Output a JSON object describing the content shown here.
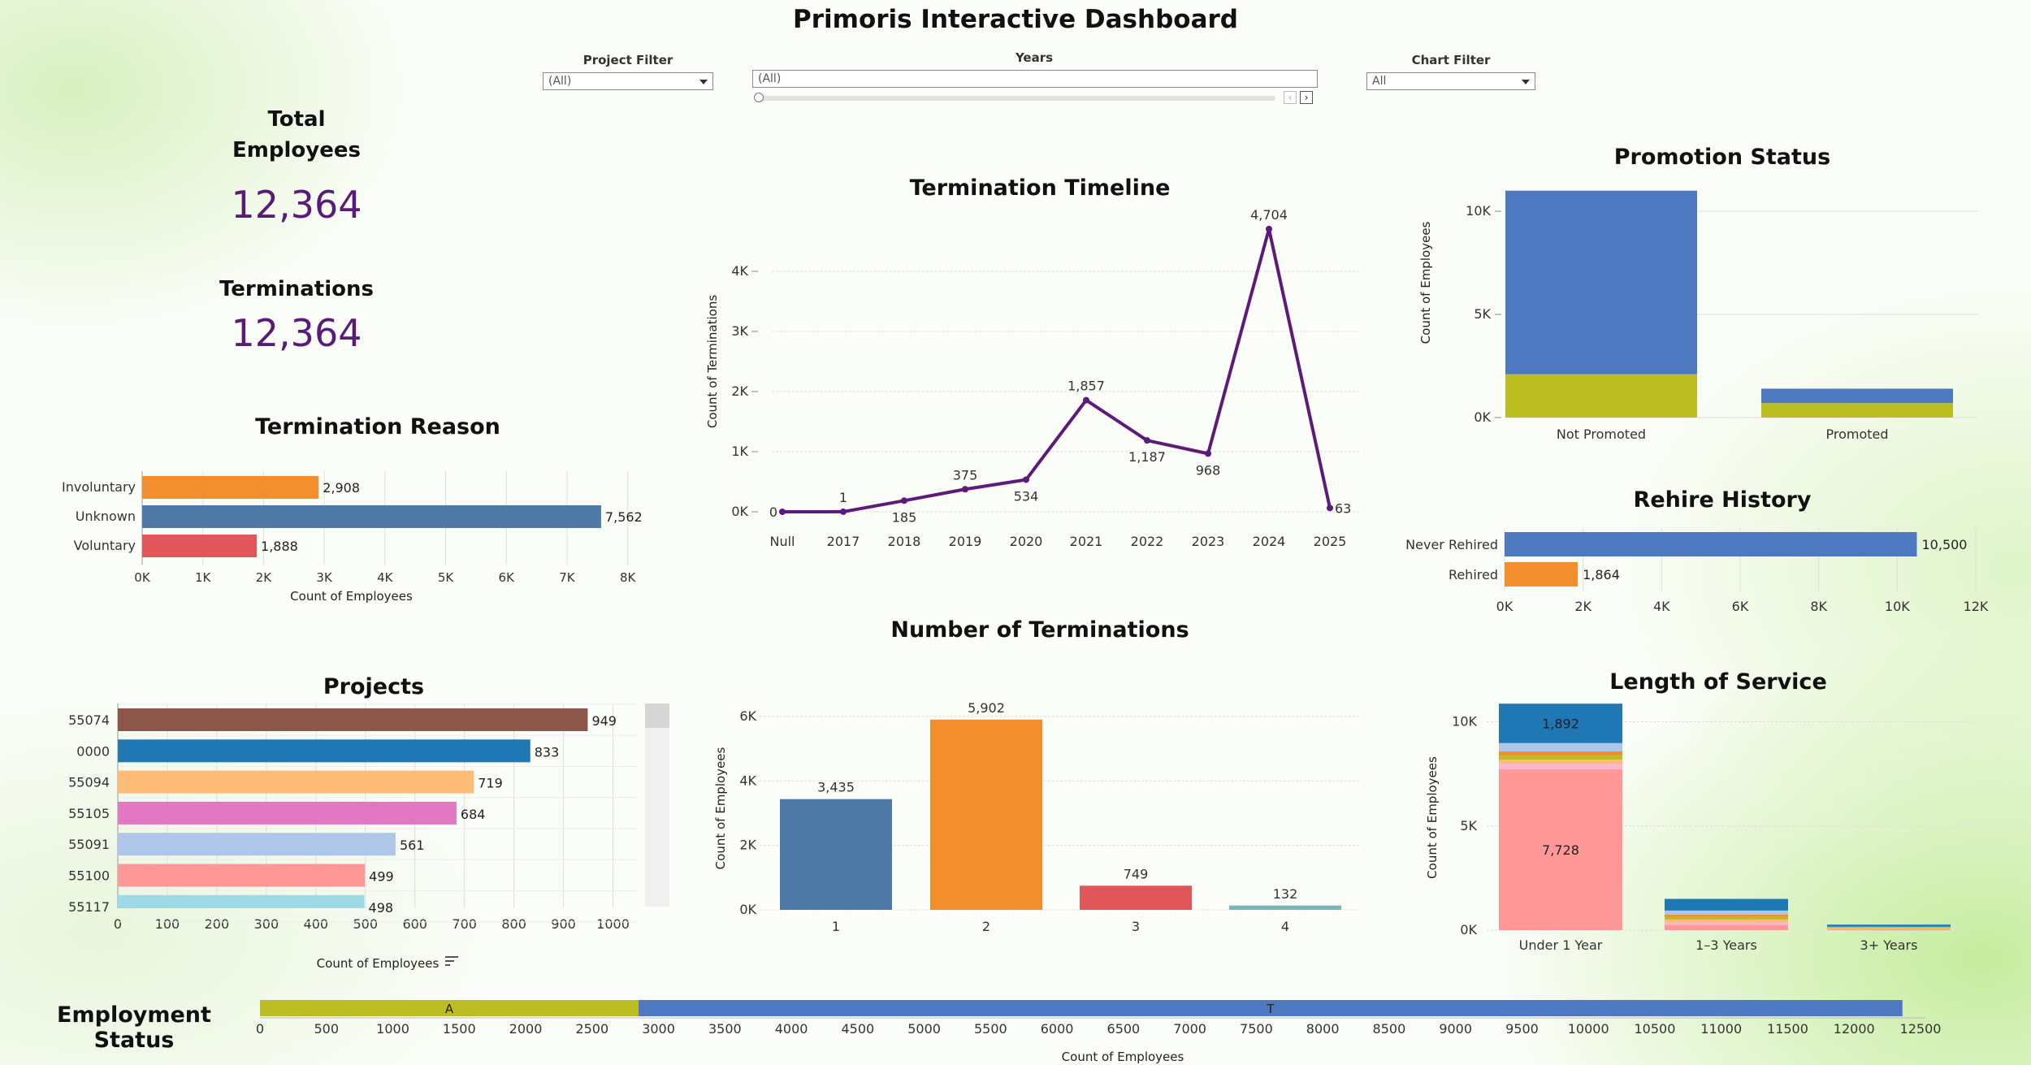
{
  "dashboard_title": "Primoris Interactive Dashboard",
  "filters": {
    "project": {
      "label": "Project Filter",
      "value": "(All)"
    },
    "years": {
      "label": "Years",
      "value": "(All)"
    },
    "chart": {
      "label": "Chart Filter",
      "value": "All"
    }
  },
  "kpis": {
    "total_employees": {
      "label": "Total Employees",
      "value": "12,364"
    },
    "terminations": {
      "label": "Terminations",
      "value": "12,364"
    }
  },
  "chart_data": [
    {
      "id": "termination_reason",
      "type": "bar",
      "orientation": "horizontal",
      "title": "Termination Reason",
      "xlabel": "Count of Employees",
      "categories": [
        "Involuntary",
        "Unknown",
        "Voluntary"
      ],
      "values": [
        2908,
        7562,
        1888
      ],
      "value_labels": [
        "2,908",
        "7,562",
        "1,888"
      ],
      "colors": [
        "#f28e2b",
        "#4e79a7",
        "#e15759"
      ],
      "xticks": [
        0,
        1000,
        2000,
        3000,
        4000,
        5000,
        6000,
        7000,
        8000
      ],
      "xtick_labels": [
        "0K",
        "1K",
        "2K",
        "3K",
        "4K",
        "5K",
        "6K",
        "7K",
        "8K"
      ],
      "xlim": [
        0,
        8500
      ]
    },
    {
      "id": "termination_timeline",
      "type": "line",
      "title": "Termination Timeline",
      "ylabel": "Count of Terminations",
      "categories": [
        "Null",
        "2017",
        "2018",
        "2019",
        "2020",
        "2021",
        "2022",
        "2023",
        "2024",
        "2025"
      ],
      "values": [
        0,
        1,
        185,
        375,
        534,
        1857,
        1187,
        968,
        4704,
        63
      ],
      "value_labels": [
        "0",
        "1",
        "185",
        "375",
        "534",
        "1,857",
        "1,187",
        "968",
        "4,704",
        "63"
      ],
      "label_side": [
        "left",
        "above",
        "below",
        "above",
        "below",
        "above",
        "below",
        "below",
        "above",
        "right"
      ],
      "color": "#5e1a7a",
      "yticks": [
        0,
        1000,
        2000,
        3000,
        4000
      ],
      "ytick_labels": [
        "0K",
        "1K",
        "2K",
        "3K",
        "4K"
      ],
      "ylim": [
        0,
        5000
      ]
    },
    {
      "id": "promotion_status",
      "type": "bar",
      "stacked": true,
      "title": "Promotion Status",
      "ylabel": "Count of Employees",
      "categories": [
        "Not Promoted",
        "Promoted"
      ],
      "series": [
        {
          "values": [
            2100,
            700
          ],
          "color": "#bcbd22"
        },
        {
          "values": [
            8900,
            700
          ],
          "color": "#4e79c0"
        }
      ],
      "yticks": [
        0,
        5000,
        10000
      ],
      "ytick_labels": [
        "0K",
        "5K",
        "10K"
      ],
      "ylim": [
        0,
        11500
      ]
    },
    {
      "id": "rehire_history",
      "type": "bar",
      "orientation": "horizontal",
      "title": "Rehire History",
      "categories": [
        "Never Rehired",
        "Rehired"
      ],
      "values": [
        10500,
        1864
      ],
      "value_labels": [
        "10,500",
        "1,864"
      ],
      "colors": [
        "#4e79c0",
        "#f28e2b"
      ],
      "xticks": [
        0,
        2000,
        4000,
        6000,
        8000,
        10000,
        12000
      ],
      "xtick_labels": [
        "0K",
        "2K",
        "4K",
        "6K",
        "8K",
        "10K",
        "12K"
      ],
      "xlim": [
        0,
        12000
      ]
    },
    {
      "id": "projects",
      "type": "bar",
      "orientation": "horizontal",
      "title": "Projects",
      "xlabel": "Count of Employees",
      "categories": [
        "55074",
        "0000",
        "55094",
        "55105",
        "55091",
        "55100",
        "55117"
      ],
      "values": [
        949,
        833,
        719,
        684,
        561,
        499,
        498
      ],
      "value_labels": [
        "949",
        "833",
        "719",
        "684",
        "561",
        "499",
        "498"
      ],
      "colors": [
        "#8c564b",
        "#1f77b4",
        "#ffbb78",
        "#e377c2",
        "#aec7e8",
        "#ff9896",
        "#9edae5"
      ],
      "xticks": [
        0,
        100,
        200,
        300,
        400,
        500,
        600,
        700,
        800,
        900,
        1000
      ],
      "xtick_labels": [
        "0",
        "100",
        "200",
        "300",
        "400",
        "500",
        "600",
        "700",
        "800",
        "900",
        "1000"
      ],
      "xlim": [
        0,
        1050
      ]
    },
    {
      "id": "number_of_terminations",
      "type": "bar",
      "title": "Number of Terminations",
      "ylabel": "Count of Employees",
      "categories": [
        "1",
        "2",
        "3",
        "4"
      ],
      "values": [
        3435,
        5902,
        749,
        132
      ],
      "value_labels": [
        "3,435",
        "5,902",
        "749",
        "132"
      ],
      "colors": [
        "#4e79a7",
        "#f28e2b",
        "#e15759",
        "#76b7b2"
      ],
      "yticks": [
        0,
        2000,
        4000,
        6000
      ],
      "ytick_labels": [
        "0K",
        "2K",
        "4K",
        "6K"
      ],
      "ylim": [
        0,
        6300
      ]
    },
    {
      "id": "length_of_service",
      "type": "bar",
      "stacked": true,
      "title": "Length of Service",
      "ylabel": "Count of Employees",
      "categories": [
        "Under 1 Year",
        "1–3 Years",
        "3+ Years"
      ],
      "series": [
        {
          "values": [
            7728,
            250,
            40
          ],
          "color": "#ff9896",
          "labels": [
            "7,728",
            "",
            ""
          ]
        },
        {
          "values": [
            250,
            130,
            25
          ],
          "color": "#f7b6d2",
          "labels": [
            "",
            "",
            ""
          ]
        },
        {
          "values": [
            200,
            130,
            25
          ],
          "color": "#ffbb78",
          "labels": [
            "",
            "",
            ""
          ]
        },
        {
          "values": [
            200,
            130,
            25
          ],
          "color": "#bcbd22",
          "labels": [
            "",
            "",
            ""
          ]
        },
        {
          "values": [
            200,
            100,
            25
          ],
          "color": "#f28e2b",
          "labels": [
            "",
            "",
            ""
          ]
        },
        {
          "values": [
            400,
            200,
            25
          ],
          "color": "#aec7e8",
          "labels": [
            "",
            "",
            ""
          ]
        },
        {
          "values": [
            1892,
            560,
            100
          ],
          "color": "#1f77b4",
          "labels": [
            "1,892",
            "",
            ""
          ]
        }
      ],
      "yticks": [
        0,
        5000,
        10000
      ],
      "ytick_labels": [
        "0K",
        "5K",
        "10K"
      ],
      "ylim": [
        0,
        10800
      ]
    },
    {
      "id": "employment_status",
      "type": "bar",
      "orientation": "horizontal",
      "stacked": true,
      "title": "Employment Status",
      "xlabel": "Count of Employees",
      "series": [
        {
          "name": "A",
          "values": [
            2850
          ],
          "color": "#bcbd22"
        },
        {
          "name": "T",
          "values": [
            9514
          ],
          "color": "#4e79c0"
        }
      ],
      "xticks": [
        0,
        500,
        1000,
        1500,
        2000,
        2500,
        3000,
        3500,
        4000,
        4500,
        5000,
        5500,
        6000,
        6500,
        7000,
        7500,
        8000,
        8500,
        9000,
        9500,
        10000,
        10500,
        11000,
        11500,
        12000,
        12500
      ],
      "xlim": [
        0,
        12500
      ]
    }
  ]
}
